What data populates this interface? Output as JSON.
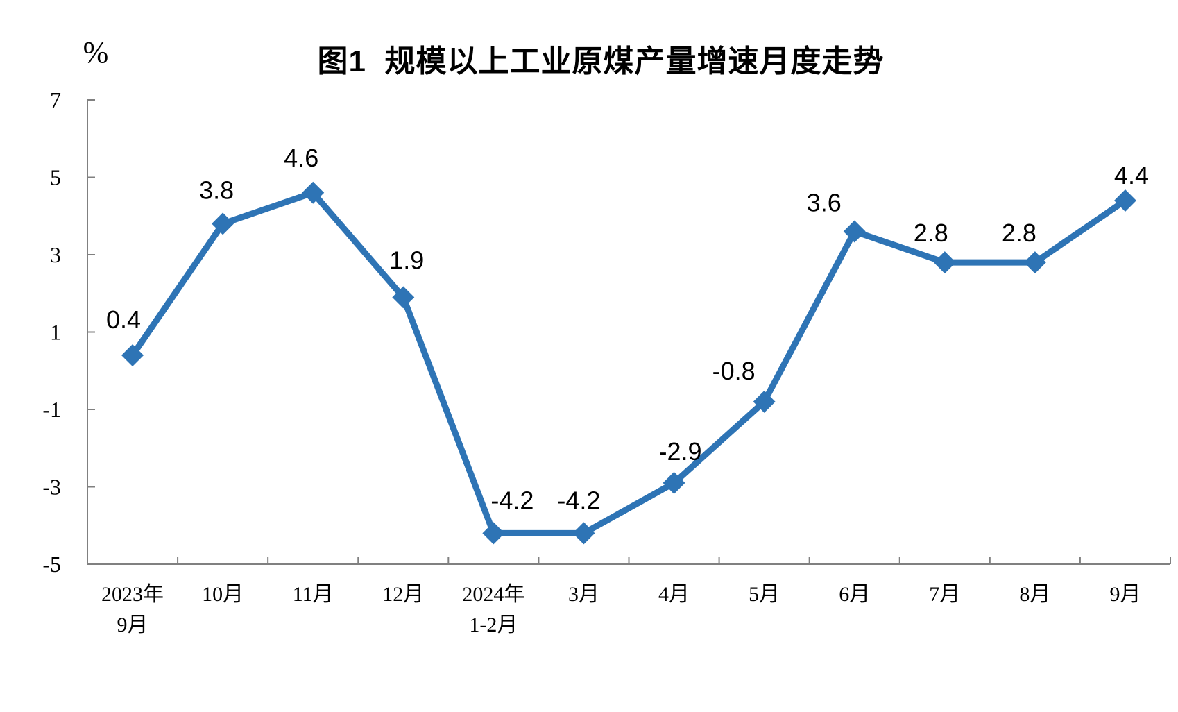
{
  "page": {
    "background": "#ffffff"
  },
  "chart_data": {
    "type": "line",
    "title": "图1  规模以上工业原煤产量增速月度走势",
    "xlabel": "",
    "ylabel": "%",
    "categories": [
      [
        "2023年",
        "9月"
      ],
      [
        "10月"
      ],
      [
        "11月"
      ],
      [
        "12月"
      ],
      [
        "2024年",
        "1-2月"
      ],
      [
        "3月"
      ],
      [
        "4月"
      ],
      [
        "5月"
      ],
      [
        "6月"
      ],
      [
        "7月"
      ],
      [
        "8月"
      ],
      [
        "9月"
      ]
    ],
    "values": [
      0.4,
      3.8,
      4.6,
      1.9,
      -4.2,
      -4.2,
      -2.9,
      -0.8,
      3.6,
      2.8,
      2.8,
      4.4
    ],
    "data_labels": [
      "0.4",
      "3.8",
      "4.6",
      "1.9",
      "-4.2",
      "-4.2",
      "-2.9",
      "-0.8",
      "3.6",
      "2.8",
      "2.8",
      "4.4"
    ],
    "ylim": [
      -5,
      7
    ],
    "yticks": [
      7,
      5,
      3,
      1,
      -1,
      -3,
      -5
    ],
    "grid": false,
    "legend": false,
    "line_color": "#2E74B5",
    "marker": "diamond",
    "marker_color": "#2E74B5",
    "axis_color": "#808080",
    "label_color": "#000000"
  }
}
